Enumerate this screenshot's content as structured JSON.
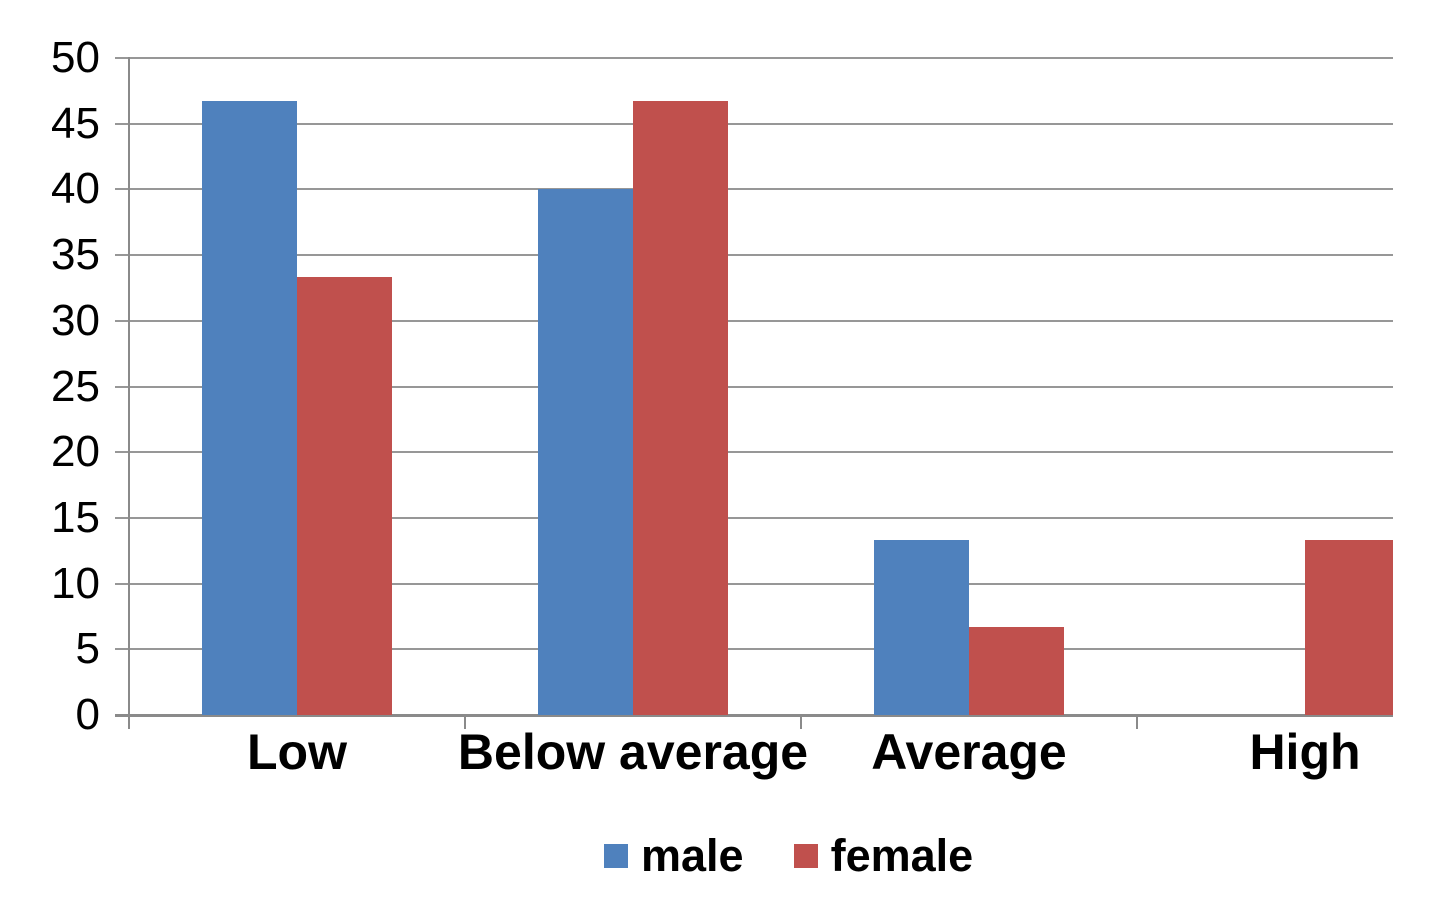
{
  "chart_data": {
    "type": "bar",
    "title": "",
    "xlabel": "",
    "ylabel": "",
    "categories": [
      "Low",
      "Below average",
      "Average",
      "High"
    ],
    "series": [
      {
        "name": "male",
        "color": "#4F81BD",
        "values": [
          46.7,
          40.0,
          13.3,
          0.0
        ]
      },
      {
        "name": "female",
        "color": "#C0504D",
        "values": [
          33.3,
          46.7,
          6.7,
          13.3
        ]
      }
    ],
    "ylim": [
      0,
      50
    ],
    "ytick_step": 5,
    "ytick_labels": [
      "0",
      "5",
      "10",
      "15",
      "20",
      "25",
      "30",
      "35",
      "40",
      "45",
      "50"
    ],
    "grid": "horizontal",
    "legend_position": "bottom",
    "gridline_color": "#979797",
    "axis_color": "#8a8a8a",
    "text_color": "#000000",
    "background_color": "#ffffff"
  },
  "legend": {
    "items": [
      {
        "label": "male",
        "color": "#4F81BD"
      },
      {
        "label": "female",
        "color": "#C0504D"
      }
    ]
  }
}
